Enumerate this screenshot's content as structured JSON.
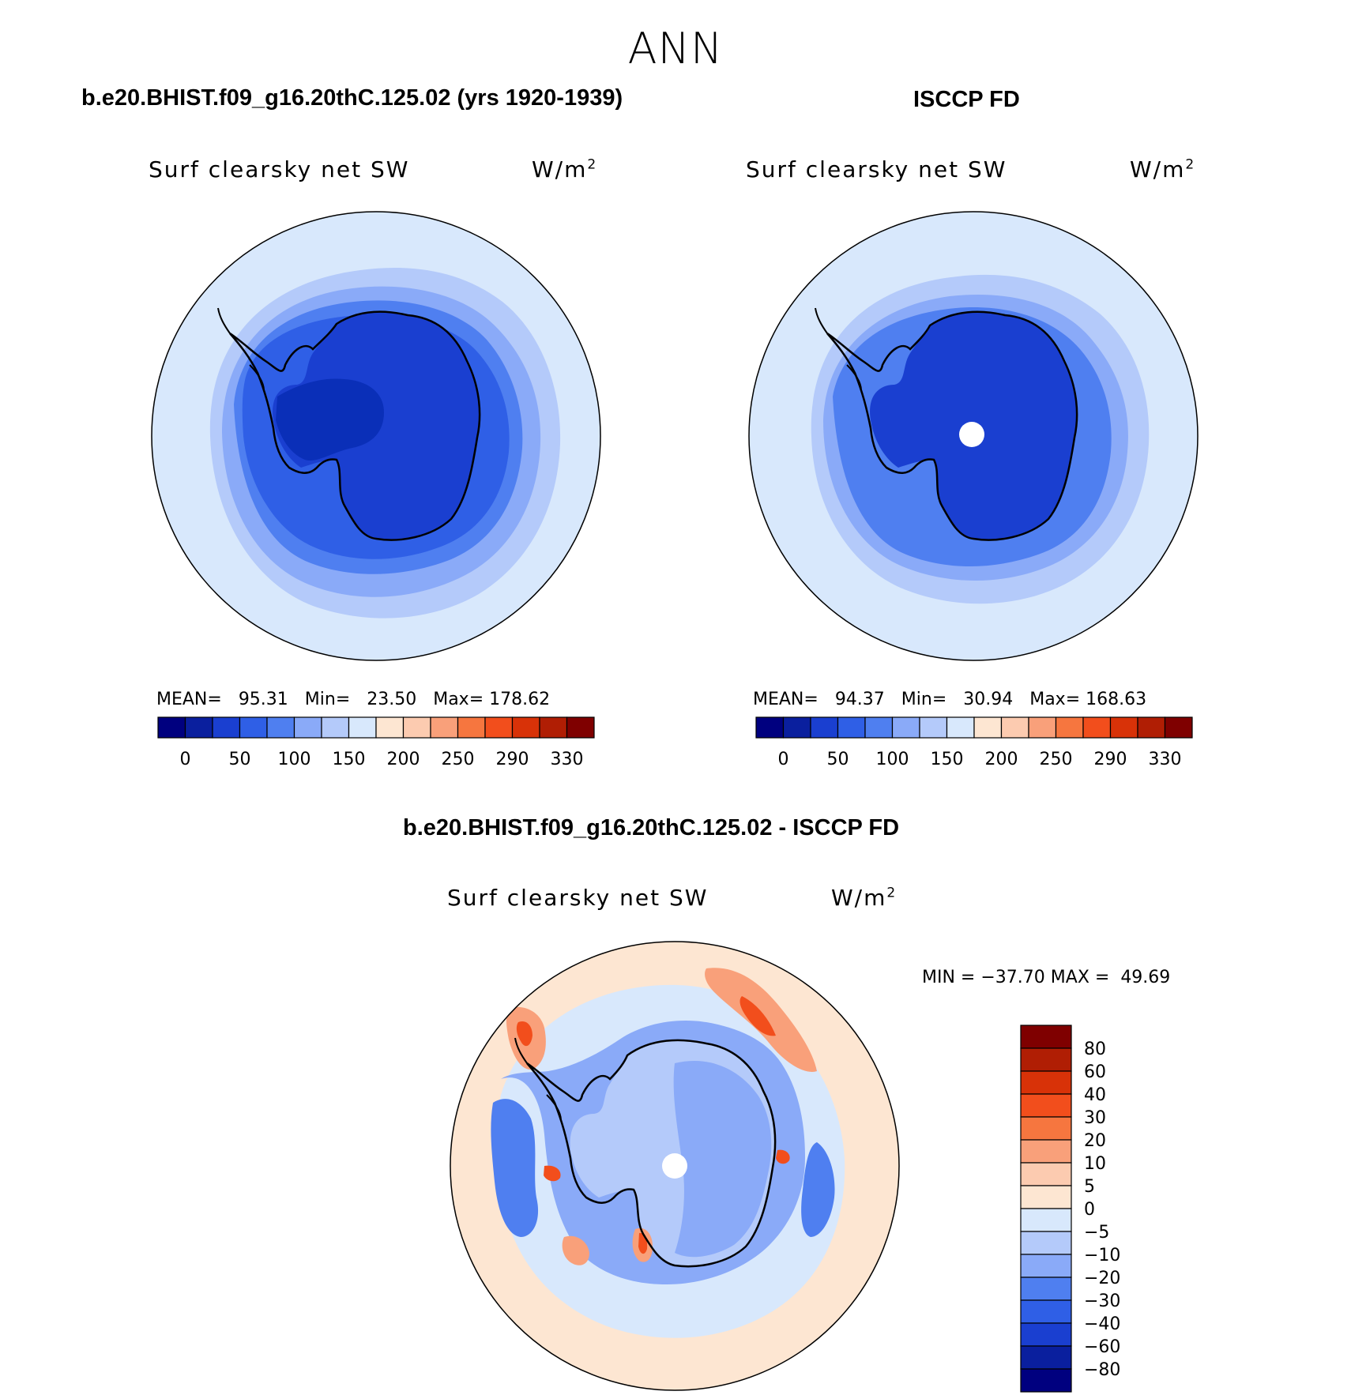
{
  "season": "ANN",
  "panels": {
    "model": {
      "title": "b.e20.BHIST.f09_g16.20thC.125.02 (yrs 1920-1939)",
      "variable": "Surf clearsky net SW",
      "units_base": "W/m",
      "units_exp": "2",
      "stats": {
        "mean_label": "MEAN=",
        "mean": "95.31",
        "min_label": "Min=",
        "min": "23.50",
        "max_label": "Max=",
        "max": "178.62"
      }
    },
    "obs": {
      "title": "ISCCP FD",
      "variable": "Surf clearsky net SW",
      "units_base": "W/m",
      "units_exp": "2",
      "stats": {
        "mean_label": "MEAN=",
        "mean": "94.37",
        "min_label": "Min=",
        "min": "30.94",
        "max_label": "Max=",
        "max": "168.63"
      }
    },
    "diff": {
      "title": "b.e20.BHIST.f09_g16.20thC.125.02 - ISCCP FD",
      "variable": "Surf clearsky net SW",
      "units_base": "W/m",
      "units_exp": "2",
      "stats": {
        "min_label": "MIN =",
        "min": "−37.70",
        "max_label": "MAX =",
        "max": "49.69"
      }
    }
  },
  "colorbar_horizontal": {
    "colors": [
      "#00007f",
      "#0a1f9e",
      "#1a3fd0",
      "#2f5fe6",
      "#4f7ff0",
      "#8aaaf8",
      "#b4cafa",
      "#d8e8fc",
      "#fde6d2",
      "#fccbb0",
      "#f9a07a",
      "#f6763f",
      "#f24e1c",
      "#d83208",
      "#b01e04",
      "#7f0000"
    ],
    "tick_labels": [
      "0",
      "50",
      "100",
      "150",
      "200",
      "250",
      "290",
      "330"
    ]
  },
  "colorbar_vertical": {
    "colors_top_to_bottom": [
      "#7f0000",
      "#b01e04",
      "#d83208",
      "#f24e1c",
      "#f6763f",
      "#f9a07a",
      "#fccbb0",
      "#fde6d2",
      "#d8e8fc",
      "#b4cafa",
      "#8aaaf8",
      "#4f7ff0",
      "#2f5fe6",
      "#1a3fd0",
      "#0a1f9e",
      "#00007f"
    ],
    "tick_labels_top_to_bottom": [
      "80",
      "60",
      "40",
      "30",
      "20",
      "10",
      "5",
      "0",
      "−5",
      "−10",
      "−20",
      "−30",
      "−40",
      "−60",
      "−80"
    ]
  },
  "map_colors": {
    "outer": "#d8e8fc",
    "ring1": "#b4cafa",
    "ring2": "#8aaaf8",
    "ring3": "#4f7ff0",
    "ring4": "#2f5fe6",
    "interior": "#1a3fd0",
    "deep": "#0a2fb8",
    "pole_hole": "#ffffff",
    "diff_background": "#fde6d2",
    "diff_neg_light": "#d8e8fc",
    "diff_neg_mid": "#b4cafa",
    "diff_neg": "#8aaaf8",
    "diff_neg_strong": "#4f7ff0",
    "diff_pos": "#f9a07a",
    "diff_pos_strong": "#f24e1c"
  }
}
